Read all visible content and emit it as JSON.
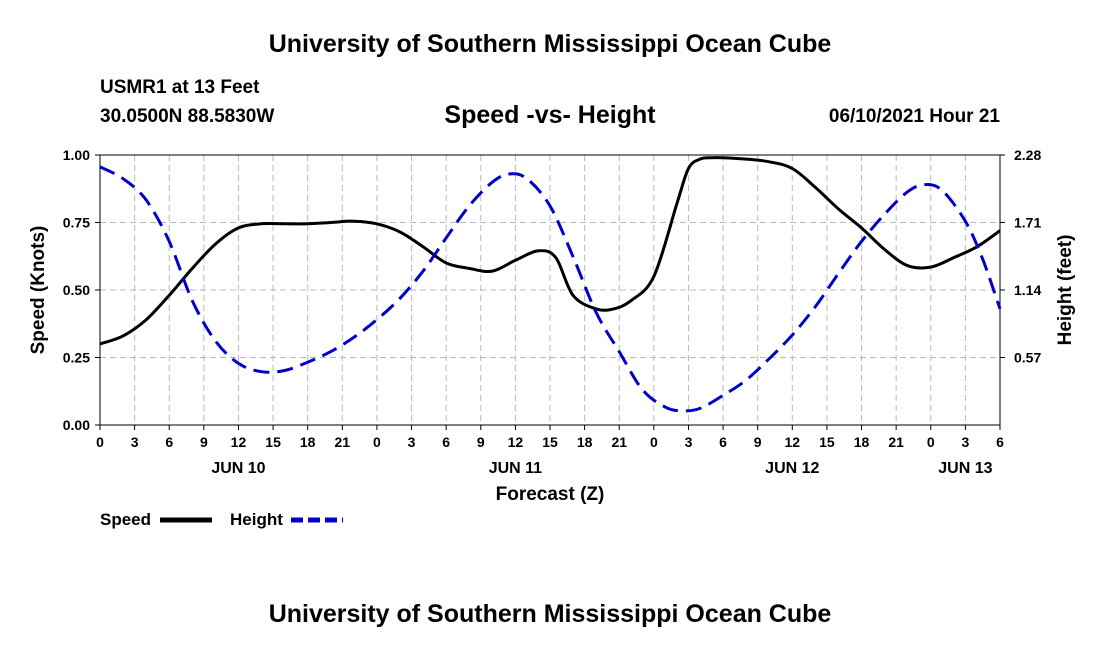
{
  "header": {
    "title": "University of Southern Mississippi Ocean Cube",
    "station": "USMR1 at 13 Feet",
    "coords": "30.0500N  88.5830W",
    "subtitle": "Speed -vs- Height",
    "datetime": "06/10/2021 Hour 21"
  },
  "footer": {
    "title": "University of Southern Mississippi Ocean Cube"
  },
  "chart_data": {
    "type": "line",
    "xlabel": "Forecast (Z)",
    "ylabel_left": "Speed (Knots)",
    "ylabel_right": "Height (feet)",
    "x_range_hours": [
      0,
      78
    ],
    "x_tick_step_hours": 3,
    "x_tick_labels": [
      "0",
      "3",
      "6",
      "9",
      "12",
      "15",
      "18",
      "21",
      "0",
      "3",
      "6",
      "9",
      "12",
      "15",
      "18",
      "21",
      "0",
      "3",
      "6",
      "9",
      "12",
      "15",
      "18",
      "21",
      "0",
      "3",
      "6"
    ],
    "date_labels": [
      {
        "label": "JUN 10",
        "hour": 12
      },
      {
        "label": "JUN 11",
        "hour": 36
      },
      {
        "label": "JUN 12",
        "hour": 60
      },
      {
        "label": "JUN 13",
        "hour": 75
      }
    ],
    "ylim_left": [
      0,
      1
    ],
    "yticks_left": [
      "0.00",
      "0.25",
      "0.50",
      "0.75",
      "1.00"
    ],
    "ylim_right": [
      0,
      2.28
    ],
    "yticks_right": [
      "0.57",
      "1.14",
      "1.71",
      "2.28"
    ],
    "grid": true,
    "legend": [
      "Speed",
      "Height"
    ],
    "series": [
      {
        "name": "Speed",
        "color": "#000000",
        "dash": "solid",
        "axis": "left",
        "x": [
          0,
          2,
          4,
          6,
          8,
          10,
          12,
          14,
          16,
          18,
          20,
          22,
          24,
          26,
          28,
          30,
          32,
          34,
          36,
          38,
          39.5,
          41,
          43,
          44.5,
          46,
          48,
          50,
          51,
          52,
          53,
          54,
          56,
          58,
          60,
          62,
          64,
          66,
          68,
          70,
          72,
          74,
          76,
          78
        ],
        "y": [
          0.3,
          0.33,
          0.39,
          0.48,
          0.58,
          0.67,
          0.73,
          0.745,
          0.745,
          0.745,
          0.75,
          0.755,
          0.745,
          0.715,
          0.66,
          0.6,
          0.58,
          0.57,
          0.61,
          0.645,
          0.62,
          0.48,
          0.43,
          0.43,
          0.46,
          0.55,
          0.82,
          0.95,
          0.985,
          0.99,
          0.99,
          0.985,
          0.975,
          0.95,
          0.88,
          0.8,
          0.73,
          0.65,
          0.59,
          0.585,
          0.62,
          0.66,
          0.72
        ]
      },
      {
        "name": "Height",
        "color": "#0000cc",
        "dash": "dashed",
        "axis": "right",
        "x": [
          0,
          2,
          4,
          6,
          8,
          10,
          12,
          14,
          16,
          18,
          20,
          22,
          24,
          26,
          28,
          30,
          32,
          34,
          35.5,
          37,
          39,
          41,
          43,
          45,
          47,
          49,
          50.5,
          52,
          54,
          56,
          58,
          60,
          62,
          64,
          66,
          68,
          70,
          71.5,
          73,
          75,
          76.5,
          78
        ],
        "y": [
          2.18,
          2.08,
          1.9,
          1.55,
          1.05,
          0.71,
          0.52,
          0.45,
          0.46,
          0.53,
          0.62,
          0.74,
          0.89,
          1.07,
          1.3,
          1.58,
          1.85,
          2.05,
          2.12,
          2.08,
          1.85,
          1.42,
          0.95,
          0.62,
          0.3,
          0.15,
          0.12,
          0.14,
          0.25,
          0.38,
          0.56,
          0.76,
          1.0,
          1.28,
          1.55,
          1.78,
          1.97,
          2.03,
          1.98,
          1.72,
          1.4,
          0.98
        ]
      }
    ]
  }
}
